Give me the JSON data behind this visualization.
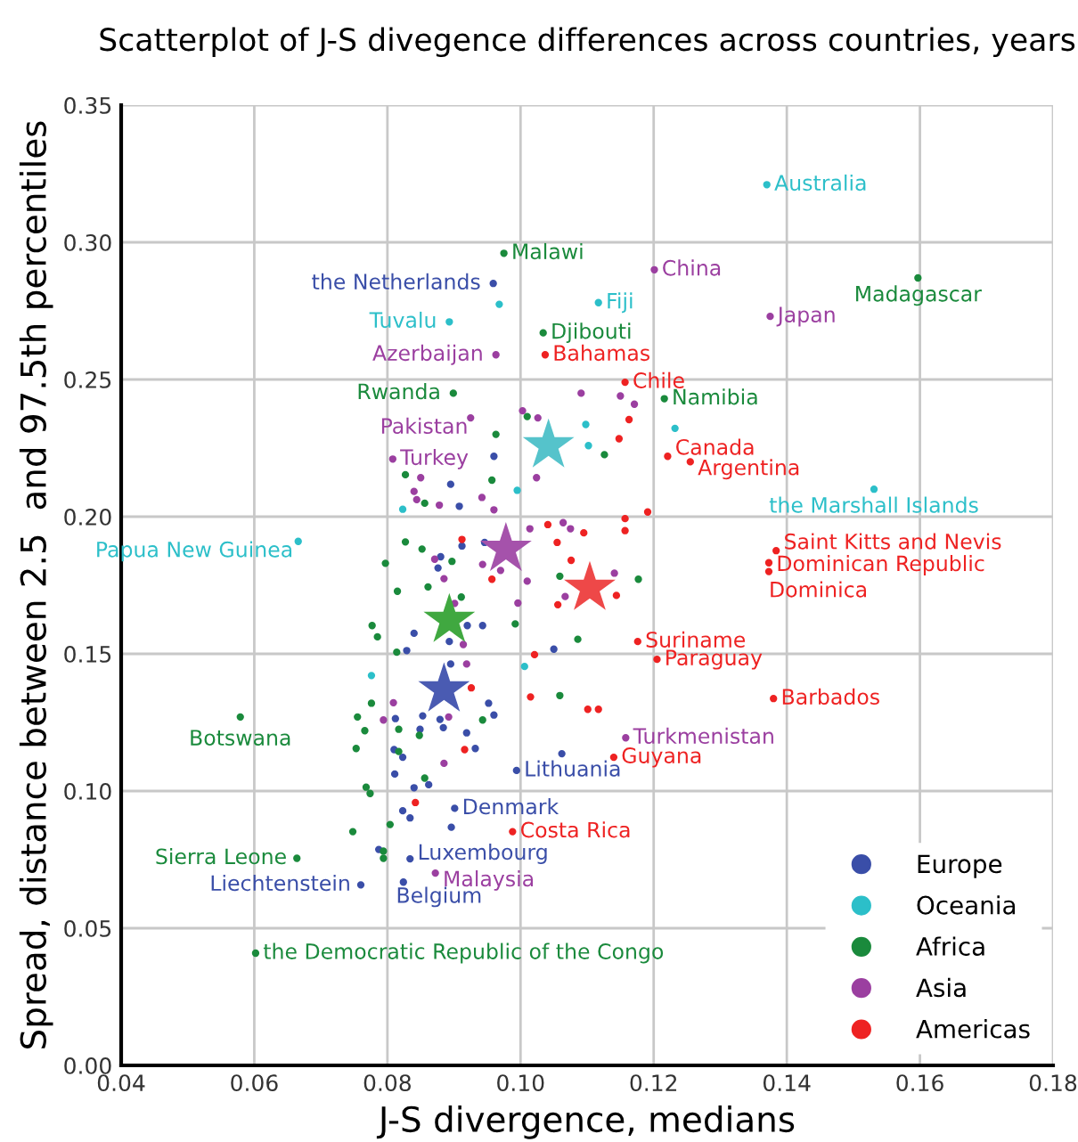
{
  "chart_data": {
    "type": "scatter",
    "title": "Scatterplot of J-S divegence differences across countries, years",
    "xlabel": "J-S divergence, medians",
    "ylabel": "Spread, distance between 2.5  and 97.5th percentiles",
    "xlim": [
      0.04,
      0.18
    ],
    "ylim": [
      0,
      0.35
    ],
    "xticks": [
      {
        "value": 0.04,
        "label": "0.04"
      },
      {
        "value": 0.06,
        "label": "0.06"
      },
      {
        "value": 0.08,
        "label": "0.08"
      },
      {
        "value": 0.1,
        "label": "0.10"
      },
      {
        "value": 0.12,
        "label": "0.12"
      },
      {
        "value": 0.14,
        "label": "0.14"
      },
      {
        "value": 0.16,
        "label": "0.16"
      },
      {
        "value": 0.18,
        "label": "0.18"
      }
    ],
    "yticks": [
      {
        "value": 0,
        "label": "0.00"
      },
      {
        "value": 0.05,
        "label": "0.05"
      },
      {
        "value": 0.1,
        "label": "0.10"
      },
      {
        "value": 0.15,
        "label": "0.15"
      },
      {
        "value": 0.2,
        "label": "0.20"
      },
      {
        "value": 0.25,
        "label": "0.25"
      },
      {
        "value": 0.3,
        "label": "0.30"
      },
      {
        "value": 0.35,
        "label": "0.35"
      }
    ],
    "grid": true,
    "legend": "bottom right",
    "marker": "circle",
    "series": [
      {
        "name": "Europe",
        "color": "#3a4ea8",
        "x": [
          0.0959,
          0.0994,
          0.0901,
          0.0834,
          0.076,
          0.0824,
          0.0895,
          0.0908,
          0.096,
          0.088,
          0.0876,
          0.0912,
          0.0946,
          0.092,
          0.0943,
          0.084,
          0.0893,
          0.0829,
          0.0895,
          0.105,
          0.0952,
          0.096,
          0.0812,
          0.0853,
          0.0879,
          0.0884,
          0.0849,
          0.0919,
          0.0932,
          0.081,
          0.0823,
          0.1062,
          0.0811,
          0.0862,
          0.084,
          0.0823,
          0.0834,
          0.0896,
          0.0787
        ],
        "values": [
          0.285,
          0.1075,
          0.0937,
          0.0753,
          0.0658,
          0.0668,
          0.2118,
          0.2038,
          0.222,
          0.1854,
          0.1813,
          0.1893,
          0.1906,
          0.1603,
          0.1603,
          0.1575,
          0.1545,
          0.1512,
          0.1463,
          0.1517,
          0.132,
          0.1277,
          0.1264,
          0.1274,
          0.1261,
          0.1231,
          0.1225,
          0.1212,
          0.1155,
          0.1151,
          0.1123,
          0.1136,
          0.1062,
          0.1023,
          0.1012,
          0.0928,
          0.0902,
          0.0868,
          0.0787
        ]
      },
      {
        "name": "Oceania",
        "color": "#2cbfc9",
        "x": [
          0.137,
          0.0893,
          0.1117,
          0.1531,
          0.0666,
          0.0968,
          0.1098,
          0.1102,
          0.1232,
          0.0823,
          0.0995,
          0.1006,
          0.0776
        ],
        "values": [
          0.321,
          0.271,
          0.278,
          0.21,
          0.191,
          0.2774,
          0.2336,
          0.2259,
          0.2322,
          0.2027,
          0.2096,
          0.1454,
          0.1421
        ]
      },
      {
        "name": "Africa",
        "color": "#1a8a3c",
        "x": [
          0.0975,
          0.1597,
          0.1034,
          0.0899,
          0.1216,
          0.0579,
          0.0664,
          0.0602,
          0.0963,
          0.101,
          0.1126,
          0.0827,
          0.0957,
          0.0856,
          0.0827,
          0.0852,
          0.0897,
          0.0797,
          0.0815,
          0.0861,
          0.0911,
          0.0992,
          0.0777,
          0.0785,
          0.0814,
          0.1086,
          0.1059,
          0.1177,
          0.0776,
          0.1059,
          0.0755,
          0.0943,
          0.0766,
          0.0817,
          0.0848,
          0.0753,
          0.0817,
          0.0856,
          0.0768,
          0.0774,
          0.0804,
          0.0748,
          0.0794,
          0.0794
        ],
        "values": [
          0.296,
          0.287,
          0.267,
          0.245,
          0.243,
          0.127,
          0.0755,
          0.0409,
          0.23,
          0.2365,
          0.2226,
          0.2153,
          0.2133,
          0.2049,
          0.1908,
          0.1882,
          0.1837,
          0.183,
          0.1728,
          0.1744,
          0.1707,
          0.1609,
          0.1603,
          0.1562,
          0.1506,
          0.1553,
          0.1783,
          0.1772,
          0.132,
          0.1348,
          0.127,
          0.1259,
          0.122,
          0.1225,
          0.1203,
          0.1155,
          0.1144,
          0.1047,
          0.1014,
          0.0991,
          0.0878,
          0.0852,
          0.0781,
          0.0755
        ]
      },
      {
        "name": "Asia",
        "color": "#9b3fa0",
        "x": [
          0.1201,
          0.1375,
          0.0963,
          0.0925,
          0.0808,
          0.1158,
          0.0872,
          0.1091,
          0.1003,
          0.1026,
          0.115,
          0.1171,
          0.1024,
          0.085,
          0.084,
          0.0844,
          0.0878,
          0.0942,
          0.096,
          0.1014,
          0.1064,
          0.1075,
          0.0871,
          0.0943,
          0.097,
          0.101,
          0.0885,
          0.0901,
          0.0996,
          0.1141,
          0.1067,
          0.0914,
          0.0919,
          0.0809,
          0.0794,
          0.0892,
          0.0885
        ],
        "values": [
          0.29,
          0.273,
          0.259,
          0.236,
          0.221,
          0.1194,
          0.0701,
          0.245,
          0.2386,
          0.236,
          0.244,
          0.241,
          0.2142,
          0.2142,
          0.2092,
          0.2062,
          0.2042,
          0.207,
          0.2025,
          0.1956,
          0.1978,
          0.1956,
          0.1845,
          0.1826,
          0.1804,
          0.1765,
          0.1774,
          0.1684,
          0.1685,
          0.1794,
          0.1709,
          0.1534,
          0.1463,
          0.1322,
          0.1259,
          0.127,
          0.1101
        ]
      },
      {
        "name": "Americas",
        "color": "#ee2222",
        "x": [
          0.1037,
          0.1157,
          0.1221,
          0.1255,
          0.1384,
          0.1373,
          0.1373,
          0.1176,
          0.1205,
          0.138,
          0.114,
          0.0988,
          0.1163,
          0.1148,
          0.1157,
          0.1191,
          0.1157,
          0.1041,
          0.1095,
          0.1055,
          0.1076,
          0.0912,
          0.0957,
          0.1144,
          0.1056,
          0.1021,
          0.0926,
          0.1015,
          0.1101,
          0.1117,
          0.0916,
          0.0842
        ],
        "values": [
          0.259,
          0.249,
          0.222,
          0.22,
          0.1876,
          0.1832,
          0.18,
          0.1545,
          0.148,
          0.1337,
          0.1123,
          0.0852,
          0.2354,
          0.2284,
          0.1993,
          0.2017,
          0.1949,
          0.1971,
          0.1941,
          0.1906,
          0.1841,
          0.1917,
          0.1772,
          0.1713,
          0.1679,
          0.1497,
          0.1376,
          0.1343,
          0.1298,
          0.1298,
          0.1151,
          0.0958
        ]
      },
      {
        "marker": "star",
        "color": "#4a5bb2",
        "x": [
          0.0885
        ],
        "values": [
          0.137
        ]
      },
      {
        "marker": "star",
        "color": "#55c3cb",
        "x": [
          0.1042
        ],
        "values": [
          0.2259
        ]
      },
      {
        "marker": "star",
        "color": "#40a840",
        "x": [
          0.0893
        ],
        "values": [
          0.1623
        ]
      },
      {
        "marker": "star",
        "color": "#a552ab",
        "x": [
          0.0978
        ],
        "values": [
          0.1882
        ]
      },
      {
        "marker": "star",
        "color": "#ee4848",
        "x": [
          0.1104
        ],
        "values": [
          0.174
        ]
      }
    ],
    "annotations": [
      {
        "text": "Australia",
        "x": 0.137,
        "y": 0.321
      },
      {
        "text": "Malawi",
        "x": 0.0975,
        "y": 0.296
      },
      {
        "text": "the Netherlands",
        "x": 0.0959,
        "y": 0.285
      },
      {
        "text": "Tuvalu",
        "x": 0.0893,
        "y": 0.271
      },
      {
        "text": "Fiji",
        "x": 0.1117,
        "y": 0.278
      },
      {
        "text": "China",
        "x": 0.1201,
        "y": 0.29
      },
      {
        "text": "Japan",
        "x": 0.1375,
        "y": 0.273
      },
      {
        "text": "Madagascar",
        "x": 0.1597,
        "y": 0.287
      },
      {
        "text": "Djibouti",
        "x": 0.1034,
        "y": 0.267
      },
      {
        "text": "Azerbaijan",
        "x": 0.0963,
        "y": 0.259
      },
      {
        "text": "Bahamas",
        "x": 0.1037,
        "y": 0.259
      },
      {
        "text": "Chile",
        "x": 0.1157,
        "y": 0.249
      },
      {
        "text": "Rwanda",
        "x": 0.0899,
        "y": 0.245
      },
      {
        "text": "Namibia",
        "x": 0.1216,
        "y": 0.243
      },
      {
        "text": "Pakistan",
        "x": 0.0925,
        "y": 0.236
      },
      {
        "text": "Turkey",
        "x": 0.0808,
        "y": 0.221
      },
      {
        "text": "Canada",
        "x": 0.1221,
        "y": 0.222
      },
      {
        "text": "Argentina",
        "x": 0.1255,
        "y": 0.22
      },
      {
        "text": "the Marshall Islands",
        "x": 0.1531,
        "y": 0.21
      },
      {
        "text": "Papua New Guinea",
        "x": 0.0666,
        "y": 0.191
      },
      {
        "text": "Saint Kitts and Nevis",
        "x": 0.1384,
        "y": 0.1876
      },
      {
        "text": "Dominican Republic",
        "x": 0.1373,
        "y": 0.1832
      },
      {
        "text": "Dominica",
        "x": 0.1373,
        "y": 0.18
      },
      {
        "text": "Suriname",
        "x": 0.1176,
        "y": 0.1545
      },
      {
        "text": "Paraguay",
        "x": 0.1205,
        "y": 0.148
      },
      {
        "text": "Barbados",
        "x": 0.138,
        "y": 0.1337
      },
      {
        "text": "Botswana",
        "x": 0.0579,
        "y": 0.127
      },
      {
        "text": "Turkmenistan",
        "x": 0.1158,
        "y": 0.1194
      },
      {
        "text": "Guyana",
        "x": 0.114,
        "y": 0.1123
      },
      {
        "text": "Lithuania",
        "x": 0.0994,
        "y": 0.1075
      },
      {
        "text": "Denmark",
        "x": 0.0901,
        "y": 0.0937
      },
      {
        "text": "Costa Rica",
        "x": 0.0988,
        "y": 0.0852
      },
      {
        "text": "Luxembourg",
        "x": 0.0834,
        "y": 0.0753
      },
      {
        "text": "Sierra Leone",
        "x": 0.0664,
        "y": 0.0755
      },
      {
        "text": "Malaysia",
        "x": 0.0872,
        "y": 0.0701
      },
      {
        "text": "Liechtenstein",
        "x": 0.076,
        "y": 0.0658
      },
      {
        "text": "Belgium",
        "x": 0.0824,
        "y": 0.0668
      },
      {
        "text": "the Democratic Republic of the Congo",
        "x": 0.0602,
        "y": 0.0409
      }
    ]
  }
}
